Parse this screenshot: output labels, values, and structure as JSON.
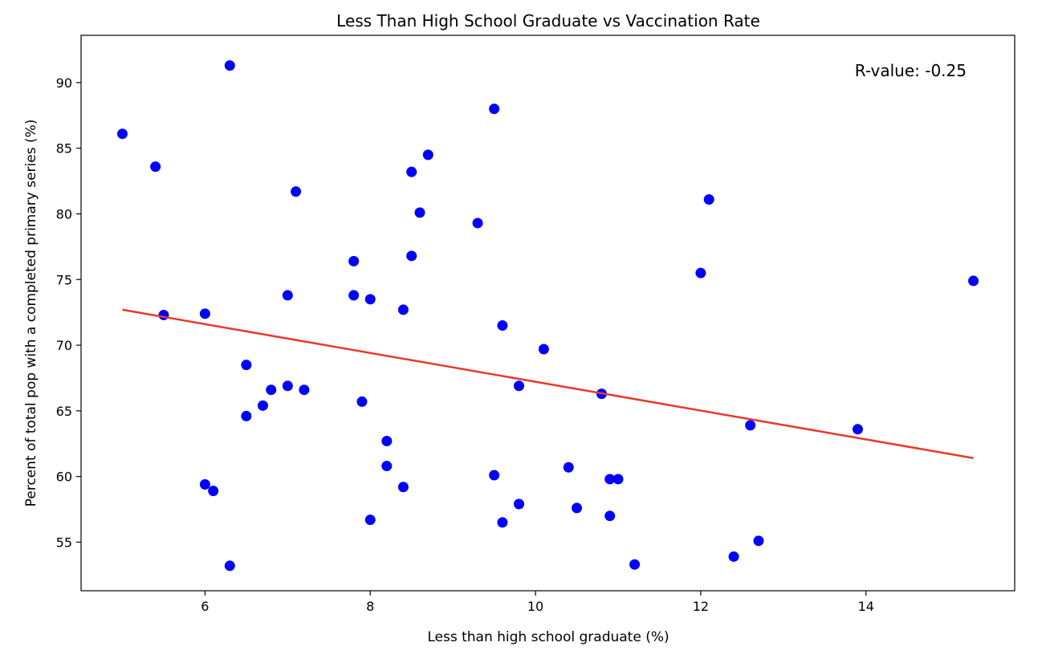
{
  "chart_data": {
    "type": "scatter",
    "title": "Less Than High School Graduate vs Vaccination Rate",
    "xlabel": "Less than high school graduate (%)",
    "ylabel": "Percent of total pop with a completed primary series (%)",
    "xlim": [
      4.5,
      15.8
    ],
    "ylim": [
      51.3,
      93.6
    ],
    "xticks": [
      6,
      8,
      10,
      12,
      14
    ],
    "yticks": [
      55,
      60,
      65,
      70,
      75,
      80,
      85,
      90
    ],
    "grid": false,
    "annotation": "R-value: -0.25",
    "colors": {
      "points": "#0000ff",
      "line": "#e8392b"
    },
    "regression": {
      "x": [
        5.0,
        15.3
      ],
      "y": [
        72.7,
        61.4
      ]
    },
    "points": [
      {
        "x": 5.0,
        "y": 86.1
      },
      {
        "x": 5.4,
        "y": 83.6
      },
      {
        "x": 5.5,
        "y": 72.3
      },
      {
        "x": 6.0,
        "y": 72.4
      },
      {
        "x": 6.0,
        "y": 59.4
      },
      {
        "x": 6.1,
        "y": 58.9
      },
      {
        "x": 6.3,
        "y": 91.3
      },
      {
        "x": 6.3,
        "y": 53.2
      },
      {
        "x": 6.5,
        "y": 68.5
      },
      {
        "x": 6.5,
        "y": 64.6
      },
      {
        "x": 6.7,
        "y": 65.4
      },
      {
        "x": 6.8,
        "y": 66.6
      },
      {
        "x": 7.0,
        "y": 73.8
      },
      {
        "x": 7.0,
        "y": 66.9
      },
      {
        "x": 7.1,
        "y": 81.7
      },
      {
        "x": 7.2,
        "y": 66.6
      },
      {
        "x": 7.8,
        "y": 76.4
      },
      {
        "x": 7.8,
        "y": 73.8
      },
      {
        "x": 7.9,
        "y": 65.7
      },
      {
        "x": 8.0,
        "y": 73.5
      },
      {
        "x": 8.0,
        "y": 56.7
      },
      {
        "x": 8.2,
        "y": 62.7
      },
      {
        "x": 8.2,
        "y": 60.8
      },
      {
        "x": 8.4,
        "y": 72.7
      },
      {
        "x": 8.4,
        "y": 59.2
      },
      {
        "x": 8.5,
        "y": 83.2
      },
      {
        "x": 8.5,
        "y": 76.8
      },
      {
        "x": 8.6,
        "y": 80.1
      },
      {
        "x": 8.7,
        "y": 84.5
      },
      {
        "x": 9.3,
        "y": 79.3
      },
      {
        "x": 9.5,
        "y": 88.0
      },
      {
        "x": 9.5,
        "y": 60.1
      },
      {
        "x": 9.6,
        "y": 71.5
      },
      {
        "x": 9.6,
        "y": 56.5
      },
      {
        "x": 9.8,
        "y": 66.9
      },
      {
        "x": 9.8,
        "y": 57.9
      },
      {
        "x": 10.1,
        "y": 69.7
      },
      {
        "x": 10.4,
        "y": 60.7
      },
      {
        "x": 10.5,
        "y": 57.6
      },
      {
        "x": 10.8,
        "y": 66.3
      },
      {
        "x": 10.9,
        "y": 59.8
      },
      {
        "x": 10.9,
        "y": 57.0
      },
      {
        "x": 11.0,
        "y": 59.8
      },
      {
        "x": 11.2,
        "y": 53.3
      },
      {
        "x": 12.0,
        "y": 75.5
      },
      {
        "x": 12.1,
        "y": 81.1
      },
      {
        "x": 12.4,
        "y": 53.9
      },
      {
        "x": 12.6,
        "y": 63.9
      },
      {
        "x": 12.7,
        "y": 55.1
      },
      {
        "x": 13.9,
        "y": 63.6
      },
      {
        "x": 15.3,
        "y": 74.9
      }
    ]
  }
}
